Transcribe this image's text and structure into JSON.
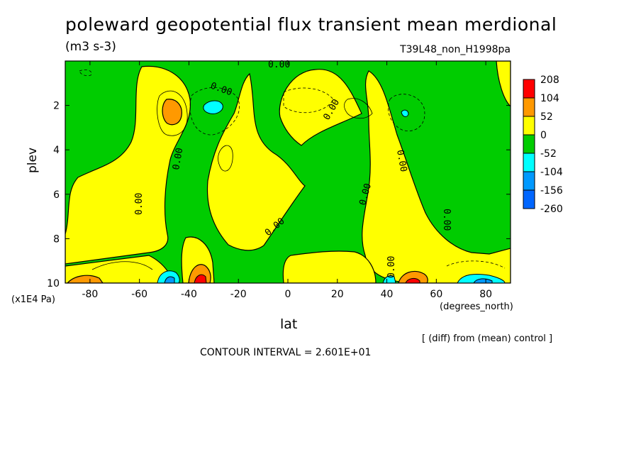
{
  "chart_data": {
    "type": "heatmap",
    "title": "poleward geopotential flux transient mean merdional",
    "units": "(m3 s-3)",
    "run_label": "T39L48_non_H1998pa",
    "ylabel": "plev",
    "yunits": "(x1E4 Pa)",
    "xlabel": "lat",
    "xunits": "(degrees_north)",
    "note": "[ (diff) from (mean) control ]",
    "contour_interval": "CONTOUR INTERVAL = 2.601E+01",
    "xlim": [
      -90,
      90
    ],
    "ylim": [
      10,
      0
    ],
    "x_ticks": [
      "-80",
      "-60",
      "-40",
      "-20",
      "0",
      "20",
      "40",
      "60",
      "80"
    ],
    "x_tick_values": [
      -80,
      -60,
      -40,
      -20,
      0,
      20,
      40,
      60,
      80
    ],
    "y_ticks": [
      "2",
      "4",
      "6",
      "8",
      "10"
    ],
    "y_tick_values": [
      2,
      4,
      6,
      8,
      10
    ],
    "colorbar": {
      "levels": [
        "208",
        "104",
        "52",
        "0",
        "-52",
        "-104",
        "-156",
        "-260"
      ],
      "colors": [
        "#ff0000",
        "#ff9900",
        "#ffff00",
        "#00cc00",
        "#00ffff",
        "#0099ff",
        "#0066ff"
      ]
    },
    "contour_labels": [
      "0.00",
      "0.00",
      "0.00",
      "0.00",
      "0.00",
      "0.00",
      "0.00",
      "0.00",
      "0.00",
      "0.00"
    ]
  }
}
